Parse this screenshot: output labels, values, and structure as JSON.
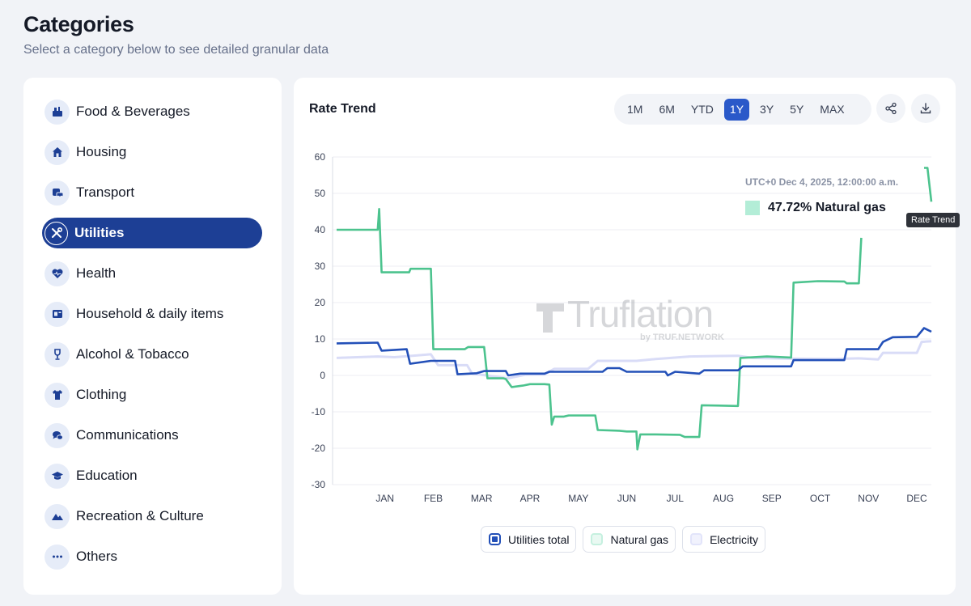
{
  "header": {
    "title": "Categories",
    "subtitle": "Select a category below to see detailed granular data"
  },
  "sidebar": {
    "items": [
      {
        "label": "Food & Beverages",
        "icon": "food-icon",
        "active": false
      },
      {
        "label": "Housing",
        "icon": "house-icon",
        "active": false
      },
      {
        "label": "Transport",
        "icon": "car-icon",
        "active": false
      },
      {
        "label": "Utilities",
        "icon": "tools-icon",
        "active": true
      },
      {
        "label": "Health",
        "icon": "heart-icon",
        "active": false
      },
      {
        "label": "Household & daily items",
        "icon": "household-icon",
        "active": false
      },
      {
        "label": "Alcohol & Tobacco",
        "icon": "wine-glass-icon",
        "active": false
      },
      {
        "label": "Clothing",
        "icon": "shirt-icon",
        "active": false
      },
      {
        "label": "Communications",
        "icon": "chat-icon",
        "active": false
      },
      {
        "label": "Education",
        "icon": "graduation-cap-icon",
        "active": false
      },
      {
        "label": "Recreation & Culture",
        "icon": "mountain-icon",
        "active": false
      },
      {
        "label": "Others",
        "icon": "more-dots-icon",
        "active": false
      }
    ]
  },
  "chart_panel": {
    "title": "Rate Trend",
    "ranges": [
      "1M",
      "6M",
      "YTD",
      "1Y",
      "3Y",
      "5Y",
      "MAX"
    ],
    "active_range": "1Y",
    "share_icon": "share-icon",
    "download_icon": "download-icon",
    "tooltip": {
      "time": "UTC+0 Dec 4, 2025, 12:00:00 a.m.",
      "value_text": "47.72% Natural gas"
    },
    "hover_label": "Rate Trend",
    "watermark": {
      "brand": "Truflation",
      "sub": "by TRUF.NETWORK"
    }
  },
  "colors": {
    "accent": "#1d3f95",
    "utilities_total": "#2350b8",
    "natural_gas": "#4cc38e",
    "electricity": "#d9dcf7"
  },
  "chart_data": {
    "type": "line",
    "title": "Rate Trend",
    "x": [
      "DEC",
      "JAN",
      "FEB",
      "MAR",
      "APR",
      "MAY",
      "JUN",
      "JUL",
      "AUG",
      "SEP",
      "OCT",
      "NOV",
      "DEC"
    ],
    "x_tick_labels": [
      "JAN",
      "FEB",
      "MAR",
      "APR",
      "MAY",
      "JUN",
      "JUL",
      "AUG",
      "SEP",
      "OCT",
      "NOV",
      "DEC"
    ],
    "ylim": [
      -30,
      60
    ],
    "y_ticks": [
      60,
      50,
      40,
      30,
      20,
      10,
      0,
      -10,
      -20,
      -30
    ],
    "series": [
      {
        "name": "Utilities total",
        "color": "#2350b8",
        "points": [
          [
            0,
            8.8
          ],
          [
            0.85,
            9
          ],
          [
            0.93,
            6.8
          ],
          [
            1.45,
            7.2
          ],
          [
            1.52,
            3.2
          ],
          [
            1.95,
            4
          ],
          [
            2.45,
            4
          ],
          [
            2.5,
            0.3
          ],
          [
            2.9,
            0.6
          ],
          [
            3.05,
            1.2
          ],
          [
            3.5,
            1.2
          ],
          [
            3.55,
            0
          ],
          [
            3.8,
            0.5
          ],
          [
            4.3,
            0.5
          ],
          [
            4.4,
            1
          ],
          [
            5.5,
            1
          ],
          [
            5.6,
            2
          ],
          [
            5.85,
            2
          ],
          [
            6,
            1
          ],
          [
            6.8,
            1
          ],
          [
            6.85,
            0
          ],
          [
            7,
            1
          ],
          [
            7.5,
            0.5
          ],
          [
            7.6,
            1.4
          ],
          [
            8.3,
            1.4
          ],
          [
            8.4,
            2.5
          ],
          [
            9.4,
            2.5
          ],
          [
            9.45,
            4.2
          ],
          [
            10.5,
            4.2
          ],
          [
            10.55,
            7.2
          ],
          [
            11.2,
            7.2
          ],
          [
            11.3,
            9.2
          ],
          [
            11.5,
            10.5
          ],
          [
            12,
            10.6
          ],
          [
            12.15,
            13
          ],
          [
            12.3,
            12
          ]
        ]
      },
      {
        "name": "Natural gas",
        "color": "#4cc38e",
        "points": [
          [
            0,
            40
          ],
          [
            0.85,
            40
          ],
          [
            0.88,
            45.7
          ],
          [
            0.93,
            28.3
          ],
          [
            1.5,
            28.3
          ],
          [
            1.53,
            29.3
          ],
          [
            1.95,
            29.3
          ],
          [
            2,
            7.2
          ],
          [
            2.65,
            7.2
          ],
          [
            2.72,
            7.8
          ],
          [
            3.05,
            7.8
          ],
          [
            3.12,
            -0.8
          ],
          [
            3.45,
            -0.8
          ],
          [
            3.5,
            -1
          ],
          [
            3.62,
            -3.2
          ],
          [
            3.85,
            -2.8
          ],
          [
            4,
            -2.4
          ],
          [
            4.3,
            -2.4
          ],
          [
            4.4,
            -2.5
          ],
          [
            4.45,
            -13.5
          ],
          [
            4.5,
            -11.3
          ],
          [
            4.7,
            -11.3
          ],
          [
            4.8,
            -11
          ],
          [
            5.35,
            -11
          ],
          [
            5.4,
            -15
          ],
          [
            5.85,
            -15.2
          ],
          [
            6,
            -15.4
          ],
          [
            6.2,
            -15.4
          ],
          [
            6.22,
            -20.3
          ],
          [
            6.28,
            -16.2
          ],
          [
            6.6,
            -16.2
          ],
          [
            7.1,
            -16.3
          ],
          [
            7.2,
            -16.9
          ],
          [
            7.5,
            -16.9
          ],
          [
            7.55,
            -8.2
          ],
          [
            8.3,
            -8.4
          ],
          [
            8.35,
            4.8
          ],
          [
            8.9,
            5.2
          ],
          [
            9.4,
            4.9
          ],
          [
            9.45,
            25.5
          ],
          [
            9.95,
            25.9
          ],
          [
            10.5,
            25.8
          ],
          [
            10.55,
            25.3
          ],
          [
            10.8,
            25.3
          ],
          [
            10.85,
            37.8
          ]
        ],
        "extra_segment": [
          [
            12.15,
            57
          ],
          [
            12.22,
            57
          ],
          [
            12.3,
            47.7
          ]
        ]
      },
      {
        "name": "Electricity",
        "color": "#d9dcf7",
        "points": [
          [
            0,
            4.8
          ],
          [
            0.85,
            5.2
          ],
          [
            1.2,
            5
          ],
          [
            1.95,
            5.8
          ],
          [
            2.1,
            2.8
          ],
          [
            2.7,
            2.8
          ],
          [
            2.8,
            0.5
          ],
          [
            3.1,
            0
          ],
          [
            3.55,
            -0.8
          ],
          [
            3.9,
            0.2
          ],
          [
            4.3,
            0.3
          ],
          [
            4.5,
            1.8
          ],
          [
            5.2,
            1.8
          ],
          [
            5.4,
            4
          ],
          [
            6.2,
            4
          ],
          [
            6.6,
            4.5
          ],
          [
            7.3,
            5.2
          ],
          [
            8.3,
            5.4
          ],
          [
            8.6,
            4.8
          ],
          [
            9.3,
            4.6
          ],
          [
            10.3,
            4.5
          ],
          [
            10.8,
            4.7
          ],
          [
            11.2,
            4.4
          ],
          [
            11.3,
            6.2
          ],
          [
            12,
            6.2
          ],
          [
            12.1,
            9.2
          ],
          [
            12.3,
            9.4
          ]
        ]
      }
    ],
    "legend": [
      "Utilities total",
      "Natural gas",
      "Electricity"
    ],
    "grid": true
  }
}
